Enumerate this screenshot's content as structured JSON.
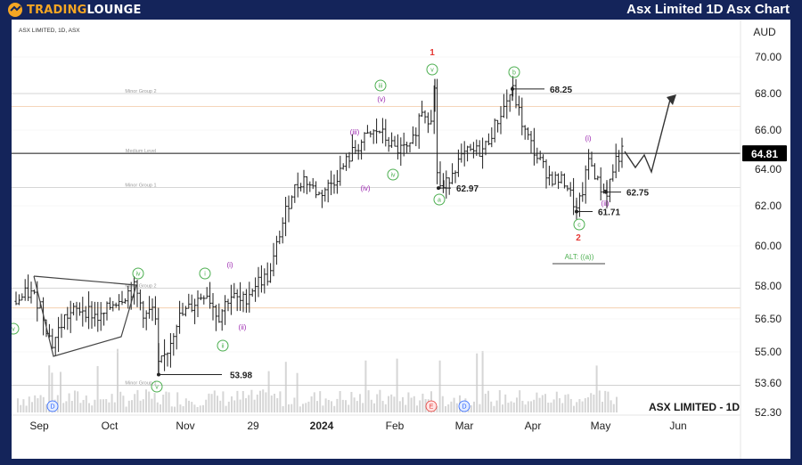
{
  "header": {
    "logo_text_1": "TRADING",
    "logo_text_2": "LOUNGE",
    "title": "Asx Limited 1D Asx Chart"
  },
  "chart_data": {
    "type": "candlestick",
    "symbol_line": "ASX LIMITED, 1D, ASX",
    "currency": "AUD",
    "watermark": "ASX LIMITED - 1D",
    "last_price": "64.81",
    "y_ticks": [
      "70.00",
      "68.00",
      "66.00",
      "64.00",
      "62.00",
      "60.00",
      "58.00",
      "56.50",
      "55.00",
      "53.60",
      "52.30"
    ],
    "x_ticks": [
      "Sep",
      "Oct",
      "Nov",
      "29",
      "2024",
      "Feb",
      "Mar",
      "Apr",
      "May",
      "Jun"
    ],
    "x_ticks_bold": [
      "2024"
    ],
    "levels": [
      {
        "label": "Minor Group 2",
        "price": 68.0,
        "color": "#c9c9c9"
      },
      {
        "label": "Medium Level",
        "price": 64.81,
        "color": "#555555"
      },
      {
        "label": "Minor Group 1",
        "price": 63.0,
        "color": "#c9c9c9"
      },
      {
        "label": "Minor Group 2",
        "price": 57.9,
        "color": "#c9c9c9"
      },
      {
        "label": "Minor Group 1",
        "price": 53.5,
        "color": "#c9c9c9"
      }
    ],
    "price_callouts": [
      "68.25",
      "62.97",
      "62.75",
      "61.71",
      "53.98"
    ],
    "wave_labels": {
      "red": [
        "1",
        "2"
      ],
      "green_circled": [
        "v",
        "iii",
        "iv",
        "b",
        "a",
        "c",
        "i",
        "ii",
        "iv",
        "v",
        "v"
      ],
      "purple_paren": [
        "(v)",
        "(iii)",
        "(iv)",
        "(i)",
        "(ii)",
        "(i)",
        "(ii)"
      ],
      "alt": "ALT: ((a))"
    },
    "markers": [
      "D",
      "E",
      "D"
    ],
    "colors": {
      "bar": "#1e1e1e",
      "wave_green": "#4caf50",
      "wave_purple": "#9c27b0",
      "wave_red": "#e53935",
      "volume": "#d6d6d6",
      "projection": "#333333",
      "price_badge": "#000000"
    }
  }
}
